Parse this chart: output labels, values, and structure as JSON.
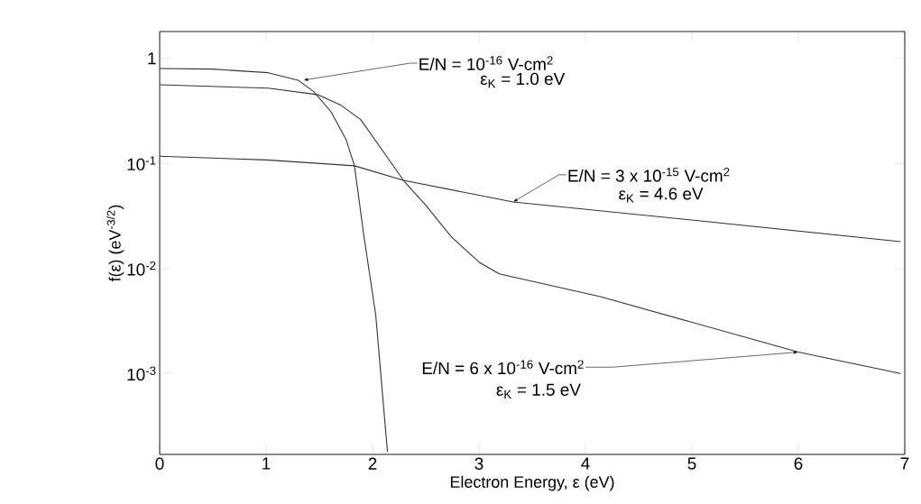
{
  "chart_data": {
    "type": "line",
    "xlabel": "Electron Energy, ε (eV)",
    "ylabel": "f(ε) (eV$^{-3/2}$)",
    "log": "y",
    "grid": false,
    "marker": "none",
    "line_style": "solid",
    "xlim": [
      0,
      7
    ],
    "ylim": [
      0.00017,
      1.8
    ],
    "xticks": [
      0,
      1,
      2,
      3,
      4,
      5,
      6,
      7
    ],
    "yticks": [
      1,
      {
        "value": 0.1,
        "label": "10$^{-1}$"
      },
      {
        "value": 0.01,
        "label": "10$^{-2}$"
      },
      {
        "value": 0.001,
        "label": "10$^{-3}$"
      }
    ],
    "series": [
      {
        "color": "#333333",
        "x": [
          0,
          0.5,
          1.02,
          1.3,
          1.45,
          1.61,
          1.75,
          1.83,
          1.92,
          2.03,
          2.14
        ],
        "values": [
          0.8,
          0.79,
          0.73,
          0.62,
          0.48,
          0.31,
          0.17,
          0.095,
          0.02,
          0.0036,
          0.00018
        ]
      },
      {
        "color": "#333333",
        "x": [
          0,
          1,
          1.83,
          2.29,
          3.32,
          5.14,
          6.96
        ],
        "values": [
          0.117,
          0.108,
          0.095,
          0.069,
          0.043,
          0.028,
          0.018
        ]
      },
      {
        "color": "#333333",
        "x": [
          0,
          1.02,
          1.49,
          1.7,
          1.89,
          2.1,
          2.29,
          2.5,
          2.74,
          3.0,
          3.19,
          4.14,
          6.0,
          6.96
        ],
        "values": [
          0.56,
          0.52,
          0.45,
          0.36,
          0.26,
          0.13,
          0.069,
          0.04,
          0.02,
          0.0115,
          0.0089,
          0.0054,
          0.0016,
          0.001
        ]
      }
    ],
    "annotations": [
      {
        "text": "E/N = 10$^{-16}$ V-cm$^{2}$",
        "x": 1.35,
        "y": 0.62
      },
      "ε$_{K}$ = 1.0 eV",
      {
        "text": "E/N = 3 x 10$^{-15}$ V-cm$^{2}$",
        "x": 3.32,
        "y": 0.043
      },
      "ε$_{K}$ = 4.6 eV",
      {
        "text": "E/N = 6 x 10$^{-16}$ V-cm$^{2}$",
        "x": 6.0,
        "y": 0.0016
      },
      "ε$_{K}$ = 1.5 eV"
    ]
  }
}
